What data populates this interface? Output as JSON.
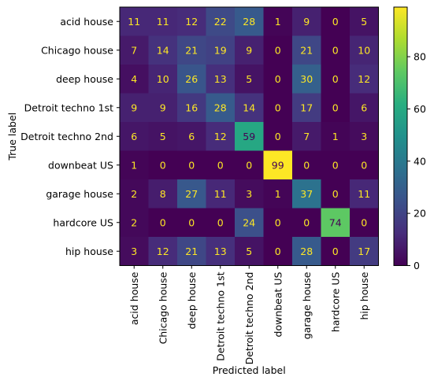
{
  "chart_data": {
    "type": "heatmap",
    "title": "",
    "xlabel": "Predicted label",
    "ylabel": "True label",
    "x_categories": [
      "acid house",
      "Chicago house",
      "deep house",
      "Detroit techno 1st",
      "Detroit techno 2nd",
      "downbeat US",
      "garage house",
      "hardcore US",
      "hip house"
    ],
    "y_categories": [
      "acid house",
      "Chicago house",
      "deep house",
      "Detroit techno 1st",
      "Detroit techno 2nd",
      "downbeat US",
      "garage house",
      "hardcore US",
      "hip house"
    ],
    "values": [
      [
        11,
        11,
        12,
        22,
        28,
        1,
        9,
        0,
        5
      ],
      [
        7,
        14,
        21,
        19,
        9,
        0,
        21,
        0,
        10
      ],
      [
        4,
        10,
        26,
        13,
        5,
        0,
        30,
        0,
        12
      ],
      [
        9,
        9,
        16,
        28,
        14,
        0,
        17,
        0,
        6
      ],
      [
        6,
        5,
        6,
        12,
        59,
        0,
        7,
        1,
        3
      ],
      [
        1,
        0,
        0,
        0,
        0,
        99,
        0,
        0,
        0
      ],
      [
        2,
        8,
        27,
        11,
        3,
        1,
        37,
        0,
        11
      ],
      [
        2,
        0,
        0,
        0,
        24,
        0,
        0,
        74,
        0
      ],
      [
        3,
        12,
        21,
        13,
        5,
        0,
        28,
        0,
        17
      ]
    ],
    "colormap": "viridis",
    "color_range": [
      0,
      99
    ],
    "colorbar_ticks": [
      0,
      20,
      40,
      60,
      80
    ],
    "text_color_light": "#fde725",
    "text_color_dark": "#440154"
  }
}
